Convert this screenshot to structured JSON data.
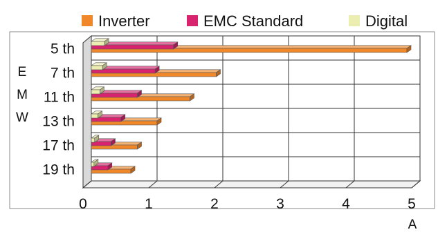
{
  "chart_data": {
    "type": "bar",
    "orientation": "horizontal",
    "style": "3d",
    "categories": [
      "5 th",
      "7 th",
      "11 th",
      "13 th",
      "17 th",
      "19 th"
    ],
    "series": [
      {
        "name": "Inverter",
        "values": [
          4.8,
          1.9,
          1.5,
          1.0,
          0.7,
          0.6
        ],
        "color": "#f0882a"
      },
      {
        "name": "EMC Standard",
        "values": [
          1.25,
          0.97,
          0.7,
          0.45,
          0.3,
          0.25
        ],
        "color": "#d8236f"
      },
      {
        "name": "Digital",
        "values": [
          0.2,
          0.17,
          0.13,
          0.1,
          0.05,
          0.04
        ],
        "color": "#ecedb0"
      }
    ],
    "xlabel": "A",
    "ylabel": "EMW",
    "xlim": [
      0,
      5
    ],
    "xticks": [
      0,
      1,
      2,
      3,
      4,
      5
    ],
    "grid": true,
    "legend": "top"
  }
}
